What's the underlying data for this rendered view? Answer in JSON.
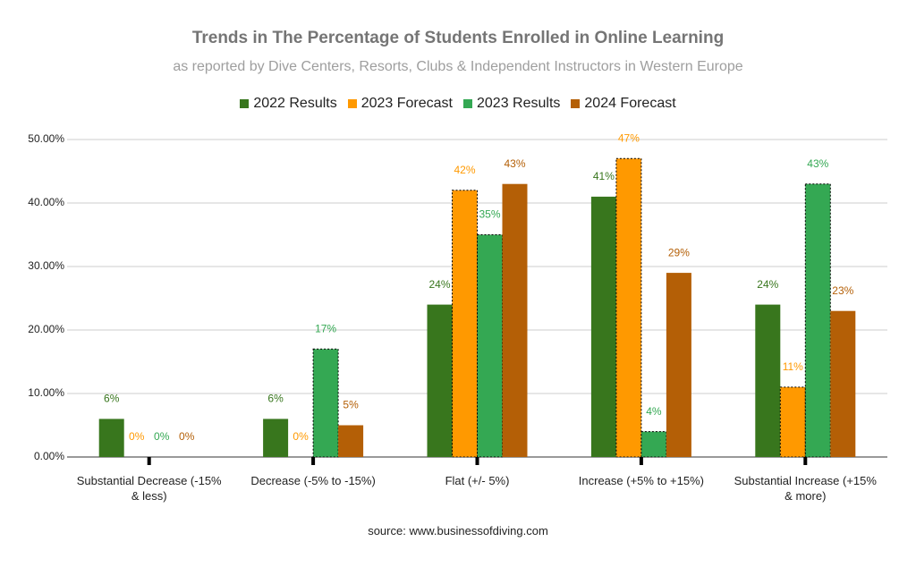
{
  "chart_data": {
    "type": "bar",
    "title": "Trends in The Percentage of Students Enrolled in Online Learning",
    "subtitle": "as reported by Dive Centers, Resorts, Clubs & Independent Instructors in Western Europe",
    "categories": [
      "Substantial Decrease (-15% & less)",
      "Decrease (-5% to -15%)",
      "Flat (+/- 5%)",
      "Increase (+5% to +15%)",
      "Substantial Increase (+15% & more)"
    ],
    "series": [
      {
        "name": "2022 Results",
        "color": "#38761d",
        "values": [
          6,
          6,
          24,
          41,
          24
        ],
        "value_labels": [
          "6%",
          "6%",
          "24%",
          "41%",
          "24%"
        ]
      },
      {
        "name": "2023 Forecast",
        "color": "#ff9900",
        "outline": "dotted",
        "values": [
          0,
          0,
          42,
          47,
          11
        ],
        "value_labels": [
          "0%",
          "0%",
          "42%",
          "47%",
          "11%"
        ]
      },
      {
        "name": "2023 Results",
        "color": "#34a853",
        "outline": "dotted",
        "values": [
          0,
          17,
          35,
          4,
          43
        ],
        "value_labels": [
          "0%",
          "17%",
          "35%",
          "4%",
          "43%"
        ]
      },
      {
        "name": "2024 Forecast",
        "color": "#b45f06",
        "values": [
          0,
          5,
          43,
          29,
          23
        ],
        "value_labels": [
          "0%",
          "5%",
          "43%",
          "29%",
          "23%"
        ]
      }
    ],
    "ylim": [
      0,
      50
    ],
    "yticks": [
      {
        "value": 0,
        "label": "0.00%"
      },
      {
        "value": 10,
        "label": "10.00%"
      },
      {
        "value": 20,
        "label": "20.00%"
      },
      {
        "value": 30,
        "label": "30.00%"
      },
      {
        "value": 40,
        "label": "40.00%"
      },
      {
        "value": 50,
        "label": "50.00%"
      }
    ],
    "grid": true,
    "legend": "top",
    "source": "source: www.businessofdiving.com"
  }
}
